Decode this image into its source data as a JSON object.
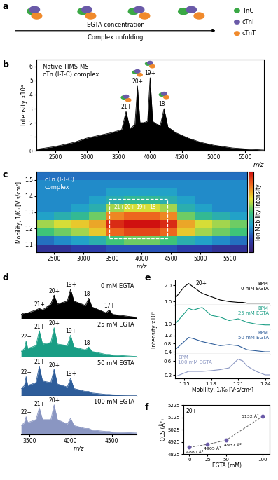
{
  "chart_data": [
    {
      "type": "diagram",
      "label": "a",
      "arrow_top": "EGTA concentration",
      "arrow_bottom": "Complex unfolding",
      "series": [
        {
          "name": "TnC",
          "color": "#3aa845"
        },
        {
          "name": "cTnI",
          "color": "#6a5aa8"
        },
        {
          "name": "cTnT",
          "color": "#f08a2c"
        }
      ]
    },
    {
      "type": "line",
      "label": "b",
      "title": "Native TIMS-MS\ncTn (I-T-C) complex",
      "color": "#000000",
      "xlabel": "m/z",
      "ylabel": "Intensity x10⁴",
      "x": [
        2200,
        2500,
        2800,
        3000,
        3200,
        3400,
        3550,
        3620,
        3680,
        3720,
        3760,
        3800,
        3840,
        3900,
        3960,
        4000,
        4040,
        4100,
        4160,
        4220,
        4280,
        4400,
        4600,
        4800,
        5000,
        5300,
        5600,
        5800
      ],
      "values": [
        0.1,
        0.3,
        0.6,
        0.9,
        1.1,
        1.3,
        1.5,
        2.8,
        1.6,
        1.7,
        1.9,
        4.6,
        2.0,
        2.0,
        2.1,
        5.2,
        2.1,
        1.9,
        1.8,
        3.0,
        1.7,
        1.3,
        0.9,
        0.6,
        0.4,
        0.2,
        0.1,
        0.05
      ],
      "xlim": [
        2200,
        5800
      ],
      "xticks": [
        2500,
        3000,
        3500,
        4000,
        4500,
        5000,
        5500
      ],
      "ylim": [
        0,
        6.5
      ],
      "yticks": [
        0,
        1,
        2,
        3,
        4,
        5,
        6
      ],
      "annotations": [
        {
          "text": "21+",
          "x": 3620
        },
        {
          "text": "20+",
          "x": 3800
        },
        {
          "text": "19+",
          "x": 4000
        },
        {
          "text": "18+",
          "x": 4220
        }
      ]
    },
    {
      "type": "heatmap",
      "label": "c",
      "title": "cTn (I-T-C)\ncomplex",
      "xlabel": "m/z",
      "ylabel": "Mobility, 1/K₀ [V·s/cm²]",
      "x_bins": [
        2200,
        2500,
        2800,
        3100,
        3400,
        3700,
        4000,
        4300,
        4600,
        4900,
        5200,
        5500,
        5800
      ],
      "y_bins": [
        1.05,
        1.1,
        1.15,
        1.2,
        1.25,
        1.3,
        1.35,
        1.4,
        1.45,
        1.5,
        1.55
      ],
      "cells": [
        [
          0.1,
          0.1,
          0.15,
          0.15,
          0.2,
          0.2,
          0.2,
          0.2,
          0.15,
          0.15,
          0.1,
          0.1
        ],
        [
          0.25,
          0.3,
          0.35,
          0.4,
          0.5,
          0.55,
          0.55,
          0.5,
          0.4,
          0.35,
          0.3,
          0.25
        ],
        [
          0.5,
          0.55,
          0.6,
          0.7,
          0.85,
          0.9,
          0.9,
          0.85,
          0.7,
          0.6,
          0.55,
          0.5
        ],
        [
          0.6,
          0.65,
          0.7,
          0.75,
          0.95,
          1.0,
          1.0,
          0.95,
          0.75,
          0.65,
          0.6,
          0.55
        ],
        [
          0.35,
          0.4,
          0.45,
          0.55,
          0.8,
          0.85,
          0.85,
          0.8,
          0.55,
          0.45,
          0.4,
          0.35
        ],
        [
          0.3,
          0.3,
          0.35,
          0.4,
          0.6,
          0.65,
          0.65,
          0.6,
          0.4,
          0.35,
          0.3,
          0.3
        ],
        [
          0.3,
          0.3,
          0.3,
          0.35,
          0.4,
          0.45,
          0.45,
          0.4,
          0.35,
          0.3,
          0.3,
          0.3
        ],
        [
          0.3,
          0.3,
          0.3,
          0.3,
          0.35,
          0.35,
          0.35,
          0.35,
          0.3,
          0.3,
          0.3,
          0.3
        ],
        [
          0.3,
          0.3,
          0.3,
          0.3,
          0.3,
          0.3,
          0.3,
          0.3,
          0.3,
          0.3,
          0.3,
          0.3
        ],
        [
          0.25,
          0.25,
          0.25,
          0.25,
          0.25,
          0.25,
          0.25,
          0.25,
          0.25,
          0.25,
          0.25,
          0.25
        ]
      ],
      "xlim": [
        2200,
        5800
      ],
      "xticks": [
        2500,
        3000,
        3500,
        4000,
        4500,
        5000,
        5500
      ],
      "ylim": [
        1.05,
        1.55
      ],
      "yticks": [
        1.1,
        1.2,
        1.3,
        1.4,
        1.5
      ],
      "colorbar_label": "Ion Mobility Intensity",
      "colorbar_range": [
        0,
        1
      ],
      "colorbar_ticks": [],
      "annotations": [
        {
          "text": "21+",
          "x": 3620,
          "y": 1.33
        },
        {
          "text": "20+",
          "x": 3800,
          "y": 1.33
        },
        {
          "text": "19+",
          "x": 4000,
          "y": 1.33
        },
        {
          "text": "18+",
          "x": 4220,
          "y": 1.33
        }
      ]
    },
    {
      "type": "area",
      "label": "d",
      "xlabel": "m/z",
      "tick_labels": "x",
      "xlim": [
        3400,
        4800
      ],
      "xticks": [
        3500,
        4000,
        4500
      ],
      "ylim": [
        0,
        1.3
      ],
      "x": [
        3400,
        3440,
        3460,
        3480,
        3580,
        3620,
        3660,
        3760,
        3800,
        3840,
        3960,
        4000,
        4040,
        4180,
        4220,
        4260,
        4430,
        4470,
        4510,
        4800
      ],
      "series": [
        {
          "name": "0 mM EGTA",
          "color": "#000000",
          "values": [
            0.15,
            0.2,
            0.2,
            0.2,
            0.3,
            0.35,
            0.3,
            0.5,
            0.8,
            0.5,
            0.6,
            1.0,
            0.6,
            0.45,
            0.7,
            0.4,
            0.2,
            0.3,
            0.15,
            0.05
          ],
          "annotations": [
            {
              "text": "21+",
              "x": 3620
            },
            {
              "text": "20+",
              "x": 3800
            },
            {
              "text": "19+",
              "x": 4000
            },
            {
              "text": "18+",
              "x": 4220
            },
            {
              "text": "17+",
              "x": 4470
            }
          ]
        },
        {
          "name": "25 mM EGTA",
          "color": "#1a9e85",
          "values": [
            0.2,
            0.3,
            0.55,
            0.3,
            0.4,
            0.9,
            0.45,
            0.5,
            1.0,
            0.45,
            0.4,
            0.75,
            0.35,
            0.25,
            0.35,
            0.2,
            0.1,
            0.1,
            0.08,
            0.03
          ],
          "annotations": [
            {
              "text": "22+",
              "x": 3460
            },
            {
              "text": "21+",
              "x": 3620
            },
            {
              "text": "20+",
              "x": 3800
            },
            {
              "text": "19+",
              "x": 4000
            },
            {
              "text": "18+",
              "x": 4220
            }
          ]
        },
        {
          "name": "50 mM EGTA",
          "color": "#2e5d9a",
          "values": [
            0.25,
            0.35,
            0.65,
            0.35,
            0.45,
            1.0,
            0.5,
            0.45,
            0.9,
            0.4,
            0.3,
            0.6,
            0.25,
            0.15,
            0.15,
            0.1,
            0.05,
            0.05,
            0.04,
            0.02
          ],
          "annotations": [
            {
              "text": "22+",
              "x": 3460
            },
            {
              "text": "21+",
              "x": 3620
            },
            {
              "text": "20+",
              "x": 3800
            },
            {
              "text": "19+",
              "x": 4000
            }
          ]
        },
        {
          "name": "100 mM EGTA",
          "color": "#8a96c2",
          "values": [
            0.3,
            0.4,
            0.6,
            0.4,
            0.5,
            0.9,
            0.5,
            0.5,
            1.0,
            0.5,
            0.35,
            0.55,
            0.3,
            0.2,
            0.2,
            0.15,
            0.1,
            0.1,
            0.08,
            0.05
          ],
          "annotations": [
            {
              "text": "22+",
              "x": 3460
            },
            {
              "text": "21+",
              "x": 3620
            },
            {
              "text": "20+",
              "x": 3800
            }
          ]
        }
      ]
    },
    {
      "type": "line",
      "label": "e",
      "title": "20+",
      "xlabel": "Mobility, 1/K₀ [V·s/cm²]",
      "ylabel": "Intensity x10⁵",
      "xlim": [
        1.14,
        1.245
      ],
      "xticks": [
        1.15,
        1.18,
        1.21,
        1.24
      ],
      "x": [
        1.14,
        1.15,
        1.155,
        1.16,
        1.17,
        1.18,
        1.19,
        1.2,
        1.21,
        1.215,
        1.22,
        1.23,
        1.24,
        1.245
      ],
      "series": [
        {
          "name": "BPM\n0 mM EGTA",
          "color": "#000000",
          "values": [
            1.2,
            1.9,
            2.1,
            1.9,
            1.5,
            1.3,
            1.1,
            1.0,
            0.95,
            0.95,
            0.9,
            0.9,
            0.9,
            0.9
          ],
          "ylim": [
            0.8,
            2.3
          ],
          "yticks": [
            {
              "value": 1,
              "label": "1.0"
            },
            {
              "value": 2,
              "label": "2.0"
            }
          ]
        },
        {
          "name": "BPM\n25 mM EGTA",
          "color": "#1a9e85",
          "values": [
            1.0,
            1.6,
            1.9,
            1.8,
            1.95,
            1.5,
            1.4,
            1.2,
            1.3,
            1.2,
            1.1,
            1.0,
            0.95,
            0.95
          ],
          "ylim": [
            0.7,
            2.1
          ],
          "yticks": [
            {
              "value": 1,
              "label": "1.0"
            }
          ]
        },
        {
          "name": "BPM\n50 mM EGTA",
          "color": "#2e5d9a",
          "values": [
            0.5,
            0.9,
            1.1,
            1.05,
            0.9,
            0.8,
            0.7,
            0.75,
            0.7,
            0.6,
            0.5,
            0.45,
            0.4,
            0.4
          ],
          "ylim": [
            0.3,
            1.5
          ],
          "yticks": [
            0.4,
            0.8,
            1.2
          ]
        },
        {
          "name": "BPM\n100 mM EGTA",
          "color": "#8a96c2",
          "values": [
            0.15,
            0.25,
            0.3,
            0.3,
            0.3,
            0.32,
            0.35,
            0.4,
            0.65,
            0.6,
            0.45,
            0.3,
            0.2,
            0.2
          ],
          "ylim": [
            0.1,
            0.8
          ],
          "yticks": [
            0.2,
            0.6
          ]
        }
      ]
    },
    {
      "type": "scatter",
      "label": "f",
      "title": "20+",
      "xlabel": "EGTA (mM)",
      "ylabel": "CCS (Å²)",
      "x": [
        0,
        25,
        50,
        100
      ],
      "values": [
        4880,
        4905,
        4937,
        5132
      ],
      "value_labels": [
        "4880 Å²",
        "4905 Å²",
        "4937 Å²",
        "5132 Å²"
      ],
      "data_labels": true,
      "color": "#6a5aa8",
      "marker": "o",
      "line_style": "dashed",
      "xlim": [
        -8,
        110
      ],
      "xticks": [
        0,
        25,
        50,
        100
      ],
      "ylim": [
        4825,
        5225
      ],
      "yticks": [
        4825,
        4925,
        5025,
        5125,
        5225
      ]
    }
  ]
}
